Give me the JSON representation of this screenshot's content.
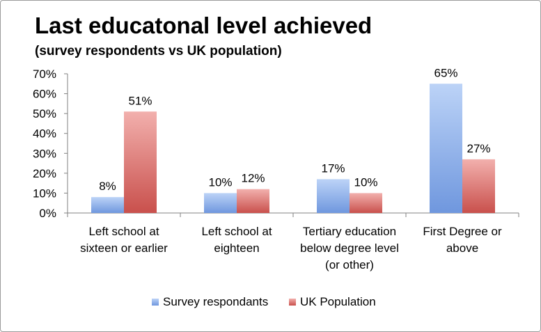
{
  "chart_data": {
    "type": "bar",
    "title": "Last educatonal level achieved",
    "subtitle": "(survey respondents vs UK population)",
    "categories": [
      [
        "Left school at",
        "sixteen or earlier"
      ],
      [
        "Left school at",
        "eighteen"
      ],
      [
        "Tertiary education",
        "below degree level",
        "(or other)"
      ],
      [
        "First Degree or",
        "above"
      ]
    ],
    "series": [
      {
        "name": "Survey respondants",
        "values": [
          8,
          10,
          17,
          65
        ],
        "labels": [
          "8%",
          "10%",
          "17%",
          "65%"
        ],
        "color_top": "#bcd3f7",
        "color_bottom": "#6f97de"
      },
      {
        "name": "UK Population",
        "values": [
          51,
          12,
          10,
          27
        ],
        "labels": [
          "51%",
          "12%",
          "10%",
          "27%"
        ],
        "color_top": "#f2b0ad",
        "color_bottom": "#c9504c"
      }
    ],
    "ylim": [
      0,
      70
    ],
    "yticks": [
      "0%",
      "10%",
      "20%",
      "30%",
      "40%",
      "50%",
      "60%",
      "70%"
    ],
    "xlabel": "",
    "ylabel": "",
    "grid": false,
    "legend": "bottom"
  }
}
